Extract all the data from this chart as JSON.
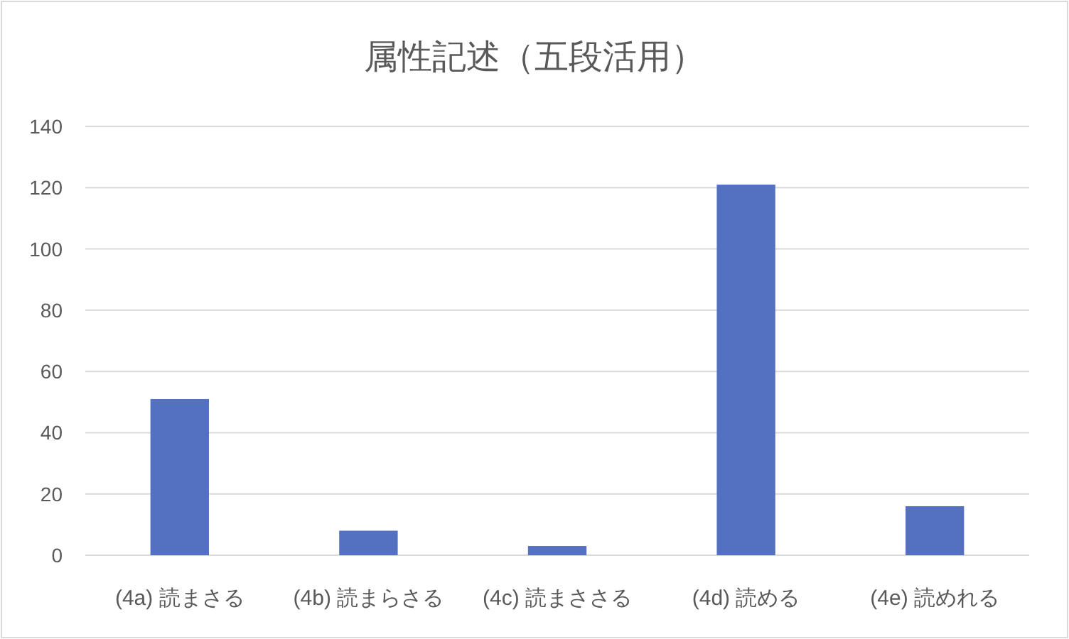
{
  "chart_data": {
    "type": "bar",
    "title": "属性記述（五段活用）",
    "categories": [
      "(4a) 読まさる",
      "(4b) 読まらさる",
      "(4c) 読まささる",
      "(4d) 読める",
      "(4e) 読めれる"
    ],
    "values": [
      51,
      8,
      3,
      121,
      16
    ],
    "color": "#5470c0",
    "ylim": [
      0,
      140
    ],
    "yticks": [
      0,
      20,
      40,
      60,
      80,
      100,
      120,
      140
    ],
    "grid": "y"
  }
}
